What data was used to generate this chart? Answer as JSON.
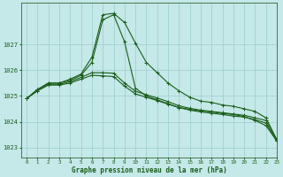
{
  "xlabel": "Graphe pression niveau de la mer (hPa)",
  "xlim": [
    -0.5,
    23
  ],
  "ylim": [
    1022.6,
    1028.6
  ],
  "yticks": [
    1023,
    1024,
    1025,
    1026,
    1027
  ],
  "xticks": [
    0,
    1,
    2,
    3,
    4,
    5,
    6,
    7,
    8,
    9,
    10,
    11,
    12,
    13,
    14,
    15,
    16,
    17,
    18,
    19,
    20,
    21,
    22,
    23
  ],
  "bg_color": "#c5e8e8",
  "grid_color": "#99cccc",
  "line_color": "#1a5e1a",
  "line1": [
    1024.9,
    1025.25,
    1025.5,
    1025.5,
    1025.65,
    1025.85,
    1026.5,
    1028.15,
    1028.2,
    1027.85,
    1027.05,
    1026.3,
    1025.9,
    1025.5,
    1025.2,
    1024.95,
    1024.8,
    1024.75,
    1024.65,
    1024.6,
    1024.5,
    1024.4,
    1024.15,
    1023.3
  ],
  "line2": [
    1024.9,
    1025.25,
    1025.5,
    1025.5,
    1025.6,
    1025.8,
    1026.3,
    1027.95,
    1028.15,
    1027.1,
    1025.3,
    1025.0,
    1024.85,
    1024.7,
    1024.55,
    1024.48,
    1024.42,
    1024.38,
    1024.32,
    1024.28,
    1024.2,
    1024.05,
    1023.85,
    1023.25
  ],
  "line3": [
    1024.9,
    1025.2,
    1025.45,
    1025.45,
    1025.55,
    1025.72,
    1025.9,
    1025.9,
    1025.88,
    1025.5,
    1025.18,
    1025.05,
    1024.92,
    1024.78,
    1024.62,
    1024.52,
    1024.45,
    1024.4,
    1024.35,
    1024.3,
    1024.25,
    1024.15,
    1024.05,
    1023.3
  ],
  "line4": [
    1024.9,
    1025.2,
    1025.42,
    1025.42,
    1025.5,
    1025.65,
    1025.8,
    1025.78,
    1025.75,
    1025.38,
    1025.08,
    1024.95,
    1024.82,
    1024.68,
    1024.55,
    1024.45,
    1024.38,
    1024.33,
    1024.28,
    1024.22,
    1024.18,
    1024.08,
    1023.95,
    1023.25
  ]
}
